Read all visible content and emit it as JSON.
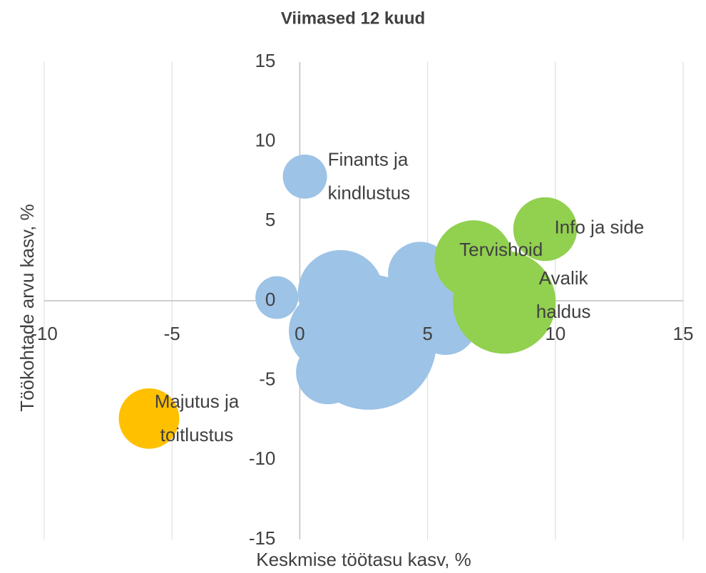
{
  "chart_data": {
    "type": "bubble",
    "title": "Viimased 12 kuud",
    "x_label": "Keskmise töötasu kasv, %",
    "y_label": "Töökohtade arvu kasv, %",
    "xlim": [
      -10,
      15
    ],
    "xticks": [
      -10,
      -5,
      0,
      5,
      10,
      15
    ],
    "ylim": [
      -15,
      15
    ],
    "yticks": [
      -15,
      -10,
      -5,
      0,
      5,
      10,
      15
    ],
    "grid": true,
    "x": [
      2.7,
      3.6,
      1.1,
      1.1,
      1.6,
      4.7,
      6.4,
      5.7,
      -0.9,
      0.2,
      8.0,
      6.8,
      9.6,
      -5.9
    ],
    "values": [
      -2.6,
      -1.7,
      -1.9,
      -4.5,
      0.5,
      1.7,
      -0.1,
      -1.4,
      0.2,
      7.8,
      -0.1,
      2.6,
      4.5,
      -7.4
    ],
    "sizes": [
      90,
      49,
      30,
      20,
      36,
      20,
      32,
      20,
      9,
      9.6,
      52,
      30,
      20,
      18
    ],
    "colors": [
      "#9dc3e6",
      "#9dc3e6",
      "#9dc3e6",
      "#9dc3e6",
      "#9dc3e6",
      "#9dc3e6",
      "#9dc3e6",
      "#9dc3e6",
      "#9dc3e6",
      "#9dc3e6",
      "#92d050",
      "#92d050",
      "#92d050",
      "#ffc000"
    ],
    "labels": [
      null,
      null,
      null,
      null,
      null,
      null,
      null,
      null,
      null,
      [
        "Finants ja",
        "kindlustus"
      ],
      [
        "Avalik",
        "haldus"
      ],
      [
        "Tervishoid"
      ],
      [
        "Info ja side"
      ],
      [
        "Majutus ja",
        "toitlustus"
      ]
    ]
  }
}
